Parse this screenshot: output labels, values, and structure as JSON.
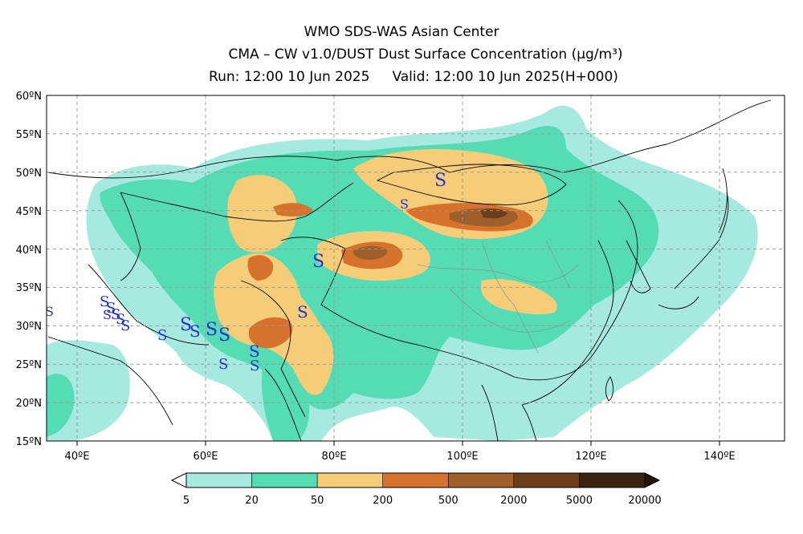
{
  "title": {
    "line1": "WMO SDS-WAS Asian Center",
    "line2": "CMA – CW v1.0/DUST Dust Surface Concentration (μg/m³)",
    "run": "Run: 12:00 10 Jun 2025",
    "valid": "Valid: 12:00 10 Jun 2025(H+000)"
  },
  "axes": {
    "lon_labels": [
      "40ºE",
      "60ºE",
      "80ºE",
      "100ºE",
      "120ºE",
      "140ºE"
    ],
    "lat_labels": [
      "60ºN",
      "55ºN",
      "50ºN",
      "45ºN",
      "40ºN",
      "35ºN",
      "30ºN",
      "25ºN",
      "20ºN",
      "15ºN"
    ],
    "lon_range": [
      35,
      150
    ],
    "lat_range": [
      15,
      60
    ],
    "grid": "dashed"
  },
  "colorbar": {
    "labels": [
      "5",
      "20",
      "50",
      "200",
      "500",
      "2000",
      "5000",
      "20000"
    ],
    "colors": [
      "#a6eadf",
      "#55dcb4",
      "#f5cd78",
      "#d7722d",
      "#9e5f2b",
      "#6b3f1c",
      "#3a2410"
    ],
    "extend": "both"
  },
  "colors": {
    "level1": "#a6eadf",
    "level2": "#55dcb4",
    "level3": "#f5cd78",
    "level4": "#d7722d",
    "level5": "#9e5f2b",
    "level6": "#6b3f1c",
    "border": "#000000",
    "province_border": "#8a8a8a",
    "dust_symbol": "#2233cc"
  },
  "weather_symbol": "S"
}
